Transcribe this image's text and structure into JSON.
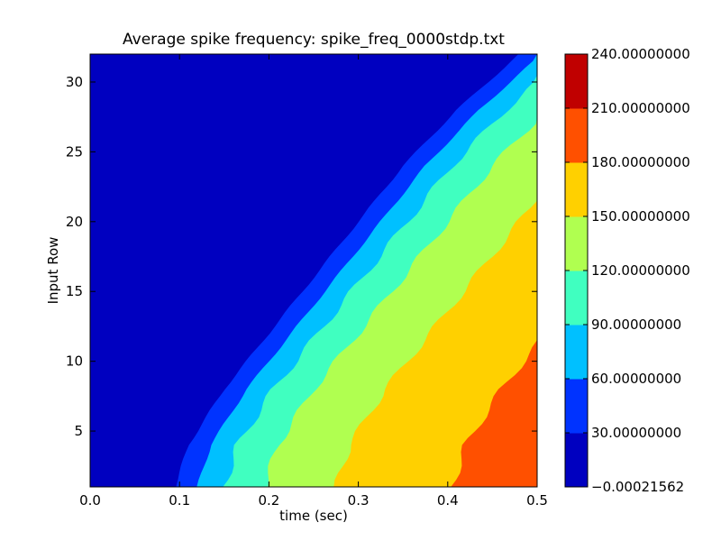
{
  "chart_data": {
    "type": "contour",
    "title": "Average spike frequency: spike_freq_0000stdp.txt",
    "xlabel": "time (sec)",
    "ylabel": "Input Row",
    "xlim": [
      0.0,
      0.5
    ],
    "ylim": [
      1,
      32
    ],
    "x_ticks": [
      0.0,
      0.1,
      0.2,
      0.3,
      0.4,
      0.5
    ],
    "x_tick_labels": [
      "0.0",
      "0.1",
      "0.2",
      "0.3",
      "0.4",
      "0.5"
    ],
    "y_ticks": [
      5,
      10,
      15,
      20,
      25,
      30
    ],
    "y_tick_labels": [
      "5",
      "10",
      "15",
      "20",
      "25",
      "30"
    ],
    "levels": [
      -0.00021562,
      30,
      60,
      90,
      120,
      150,
      180,
      210,
      240
    ],
    "colorbar_tick_labels": [
      "−0.00021562",
      "30.00000000",
      "60.00000000",
      "90.00000000",
      "120.00000000",
      "150.00000000",
      "180.00000000",
      "210.00000000",
      "240.00000000"
    ],
    "colors": [
      "#0000c0",
      "#0033ff",
      "#00c0ff",
      "#40ffc0",
      "#b0ff50",
      "#ffd000",
      "#ff5000",
      "#c00000"
    ],
    "onset_time_at_row": [
      [
        1,
        0.095
      ],
      [
        4,
        0.11
      ],
      [
        8,
        0.15
      ],
      [
        12,
        0.2
      ],
      [
        16,
        0.25
      ],
      [
        20,
        0.3
      ],
      [
        24,
        0.35
      ],
      [
        28,
        0.41
      ],
      [
        32,
        0.48
      ]
    ],
    "band_widths_sec": [
      0.0,
      0.025,
      0.03,
      0.045,
      0.08,
      0.13
    ]
  }
}
